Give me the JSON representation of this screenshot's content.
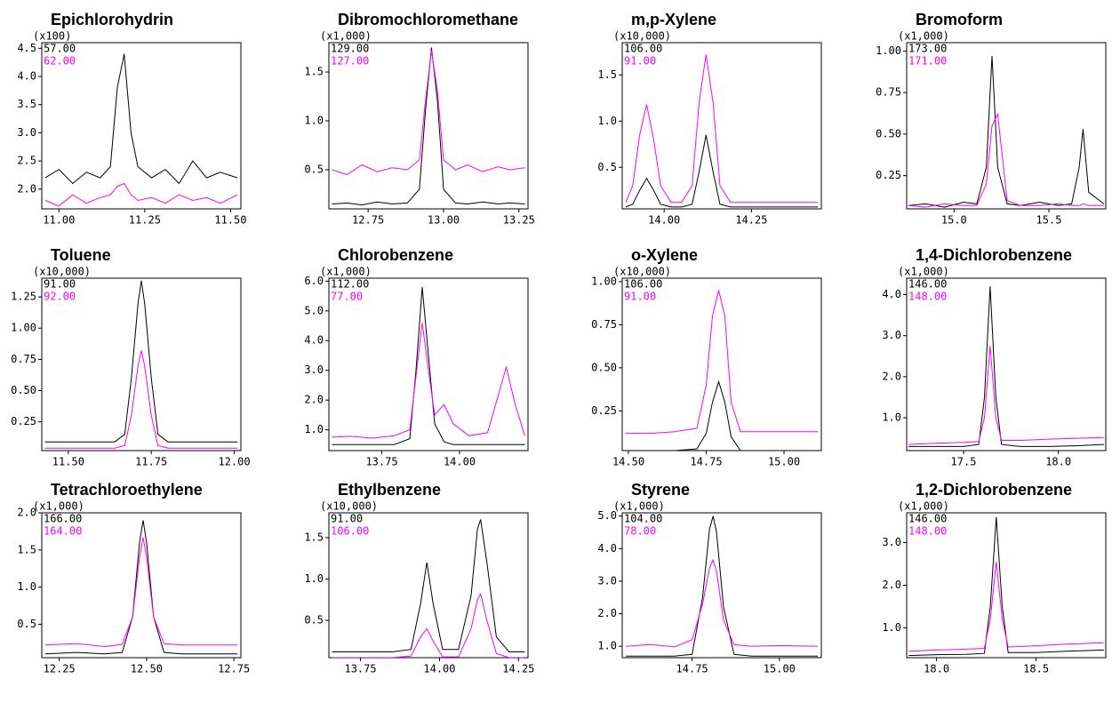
{
  "chart_data": [
    {
      "type": "line",
      "title": "Epichlorohydrin",
      "ylabel": "(x100)",
      "xlim": [
        10.95,
        11.53
      ],
      "ylim": [
        1.65,
        4.6
      ],
      "xticks": [
        {
          "value": 11.0,
          "label": "11.00"
        },
        11.25,
        {
          "value": 11.5,
          "label": "11.50"
        }
      ],
      "yticks": [
        {
          "value": 2.0,
          "label": "2.0"
        },
        2.5,
        {
          "value": 3.0,
          "label": "3.0"
        },
        3.5,
        {
          "value": 4.0,
          "label": "4.0"
        },
        4.5
      ],
      "x": [
        10.96,
        11.0,
        11.04,
        11.08,
        11.12,
        11.15,
        11.17,
        11.19,
        11.21,
        11.23,
        11.27,
        11.31,
        11.35,
        11.39,
        11.43,
        11.47,
        11.52
      ],
      "series": [
        {
          "name": "57.00",
          "color": "#000000",
          "values": [
            2.2,
            2.35,
            2.1,
            2.3,
            2.2,
            2.4,
            3.8,
            4.4,
            3.0,
            2.4,
            2.2,
            2.35,
            2.1,
            2.5,
            2.2,
            2.3,
            2.2
          ]
        },
        {
          "name": "62.00",
          "color": "#ff00ff",
          "values": [
            1.8,
            1.7,
            1.9,
            1.75,
            1.85,
            1.9,
            2.05,
            2.1,
            1.9,
            1.8,
            1.85,
            1.75,
            1.9,
            1.8,
            1.85,
            1.75,
            1.9
          ]
        }
      ]
    },
    {
      "type": "line",
      "title": "Dibromochloromethane",
      "ylabel": "(x1,000)",
      "xlim": [
        12.62,
        13.28
      ],
      "ylim": [
        0.1,
        1.8
      ],
      "xticks": [
        12.75,
        {
          "value": 13.0,
          "label": "13.00"
        },
        13.25
      ],
      "yticks": [
        0.5,
        {
          "value": 1.0,
          "label": "1.0"
        },
        1.5
      ],
      "x": [
        12.63,
        12.68,
        12.73,
        12.78,
        12.83,
        12.88,
        12.92,
        12.94,
        12.96,
        12.98,
        13.0,
        13.04,
        13.08,
        13.13,
        13.18,
        13.22,
        13.27
      ],
      "series": [
        {
          "name": "129.00",
          "color": "#000000",
          "values": [
            0.15,
            0.16,
            0.14,
            0.17,
            0.15,
            0.16,
            0.3,
            1.1,
            1.75,
            1.2,
            0.3,
            0.16,
            0.15,
            0.17,
            0.15,
            0.16,
            0.15
          ]
        },
        {
          "name": "127.00",
          "color": "#ff00ff",
          "values": [
            0.5,
            0.45,
            0.55,
            0.48,
            0.52,
            0.5,
            0.6,
            1.2,
            1.72,
            1.3,
            0.6,
            0.5,
            0.55,
            0.48,
            0.53,
            0.5,
            0.52
          ]
        }
      ]
    },
    {
      "type": "line",
      "title": "m,p-Xylene",
      "ylabel": "(x10,000)",
      "xlim": [
        13.88,
        14.45
      ],
      "ylim": [
        0.05,
        1.85
      ],
      "xticks": [
        {
          "value": 14.0,
          "label": "14.00"
        },
        14.25
      ],
      "yticks": [
        0.5,
        {
          "value": 1.0,
          "label": "1.0"
        },
        1.5
      ],
      "x": [
        13.89,
        13.91,
        13.93,
        13.95,
        13.97,
        13.99,
        14.02,
        14.05,
        14.08,
        14.1,
        14.12,
        14.14,
        14.16,
        14.19,
        14.23,
        14.3,
        14.37,
        14.44
      ],
      "series": [
        {
          "name": "106.00",
          "color": "#000000",
          "values": [
            0.07,
            0.1,
            0.25,
            0.38,
            0.25,
            0.1,
            0.07,
            0.07,
            0.1,
            0.45,
            0.85,
            0.45,
            0.1,
            0.07,
            0.07,
            0.07,
            0.07,
            0.07
          ]
        },
        {
          "name": "91.00",
          "color": "#ff00ff",
          "values": [
            0.12,
            0.3,
            0.85,
            1.18,
            0.8,
            0.3,
            0.12,
            0.12,
            0.3,
            1.2,
            1.72,
            1.2,
            0.3,
            0.12,
            0.12,
            0.12,
            0.12,
            0.12
          ]
        }
      ]
    },
    {
      "type": "line",
      "title": "Bromoform",
      "ylabel": "(x1,000)",
      "xlim": [
        14.75,
        15.8
      ],
      "ylim": [
        0.05,
        1.05
      ],
      "xticks": [
        {
          "value": 15.0,
          "label": "15.0"
        },
        15.5
      ],
      "yticks": [
        0.25,
        {
          "value": 0.5,
          "label": "0.50"
        },
        0.75,
        {
          "value": 1.0,
          "label": "1.00"
        }
      ],
      "x": [
        14.76,
        14.85,
        14.95,
        15.05,
        15.12,
        15.17,
        15.2,
        15.23,
        15.28,
        15.35,
        15.45,
        15.55,
        15.62,
        15.66,
        15.68,
        15.71,
        15.79
      ],
      "series": [
        {
          "name": "173.00",
          "color": "#000000",
          "values": [
            0.07,
            0.08,
            0.06,
            0.09,
            0.08,
            0.3,
            0.97,
            0.3,
            0.08,
            0.07,
            0.09,
            0.07,
            0.08,
            0.3,
            0.53,
            0.15,
            0.08
          ]
        },
        {
          "name": "171.00",
          "color": "#ff00ff",
          "values": [
            0.07,
            0.06,
            0.08,
            0.07,
            0.07,
            0.2,
            0.55,
            0.62,
            0.1,
            0.07,
            0.07,
            0.08,
            0.07,
            0.07,
            0.08,
            0.07,
            0.07
          ]
        }
      ]
    },
    {
      "type": "line",
      "title": "Toluene",
      "ylabel": "(x10,000)",
      "xlim": [
        11.42,
        12.02
      ],
      "ylim": [
        0.02,
        1.4
      ],
      "xticks": [
        {
          "value": 11.5,
          "label": "11.50"
        },
        11.75,
        {
          "value": 12.0,
          "label": "12.00"
        }
      ],
      "yticks": [
        0.25,
        {
          "value": 0.5,
          "label": "0.50"
        },
        0.75,
        {
          "value": 1.0,
          "label": "1.00"
        },
        1.25
      ],
      "x": [
        11.43,
        11.5,
        11.58,
        11.64,
        11.67,
        11.69,
        11.71,
        11.72,
        11.73,
        11.75,
        11.77,
        11.8,
        11.86,
        11.93,
        12.01
      ],
      "series": [
        {
          "name": "91.00",
          "color": "#000000",
          "values": [
            0.09,
            0.09,
            0.09,
            0.09,
            0.15,
            0.6,
            1.2,
            1.38,
            1.2,
            0.6,
            0.15,
            0.09,
            0.09,
            0.09,
            0.09
          ]
        },
        {
          "name": "92.00",
          "color": "#ff00ff",
          "values": [
            0.04,
            0.04,
            0.04,
            0.04,
            0.06,
            0.3,
            0.7,
            0.82,
            0.7,
            0.3,
            0.06,
            0.04,
            0.04,
            0.04,
            0.04
          ]
        }
      ]
    },
    {
      "type": "line",
      "title": "Chlorobenzene",
      "ylabel": "(x1,000)",
      "xlim": [
        13.58,
        14.22
      ],
      "ylim": [
        0.3,
        6.1
      ],
      "xticks": [
        13.75,
        {
          "value": 14.0,
          "label": "14.00"
        }
      ],
      "yticks": [
        {
          "value": 1.0,
          "label": "1.0"
        },
        {
          "value": 2.0,
          "label": "2.0"
        },
        {
          "value": 3.0,
          "label": "3.0"
        },
        {
          "value": 4.0,
          "label": "4.0"
        },
        {
          "value": 5.0,
          "label": "5.0"
        },
        {
          "value": 6.0,
          "label": "6.0"
        }
      ],
      "x": [
        13.59,
        13.65,
        13.72,
        13.79,
        13.84,
        13.86,
        13.88,
        13.9,
        13.92,
        13.95,
        13.98,
        14.03,
        14.09,
        14.12,
        14.15,
        14.18,
        14.21
      ],
      "series": [
        {
          "name": "112.00",
          "color": "#000000",
          "values": [
            0.5,
            0.5,
            0.5,
            0.5,
            0.7,
            3.0,
            5.8,
            3.5,
            1.2,
            0.6,
            0.5,
            0.5,
            0.5,
            0.5,
            0.5,
            0.5,
            0.5
          ]
        },
        {
          "name": "77.00",
          "color": "#ff00ff",
          "values": [
            0.75,
            0.78,
            0.72,
            0.8,
            1.0,
            2.8,
            4.6,
            3.0,
            1.5,
            1.85,
            1.2,
            0.8,
            0.9,
            2.0,
            3.1,
            1.8,
            0.8
          ]
        }
      ]
    },
    {
      "type": "line",
      "title": "o-Xylene",
      "ylabel": "(x10,000)",
      "xlim": [
        14.48,
        15.12
      ],
      "ylim": [
        0.02,
        1.02
      ],
      "xticks": [
        {
          "value": 14.5,
          "label": "14.50"
        },
        14.75,
        {
          "value": 15.0,
          "label": "15.00"
        }
      ],
      "yticks": [
        0.25,
        {
          "value": 0.5,
          "label": "0.50"
        },
        0.75,
        {
          "value": 1.0,
          "label": "1.00"
        }
      ],
      "x": [
        14.49,
        14.57,
        14.65,
        14.72,
        14.75,
        14.77,
        14.79,
        14.81,
        14.83,
        14.86,
        14.93,
        15.01,
        15.11
      ],
      "series": [
        {
          "name": "106.00",
          "color": "#000000",
          "values": [
            0.02,
            0.02,
            0.02,
            0.03,
            0.12,
            0.3,
            0.42,
            0.3,
            0.1,
            0.02,
            0.02,
            0.02,
            0.02
          ]
        },
        {
          "name": "91.00",
          "color": "#ff00ff",
          "values": [
            0.12,
            0.12,
            0.13,
            0.15,
            0.4,
            0.8,
            0.95,
            0.8,
            0.3,
            0.13,
            0.13,
            0.13,
            0.13
          ]
        }
      ]
    },
    {
      "type": "line",
      "title": "1,4-Dichlorobenzene",
      "ylabel": "(x1,000)",
      "xlim": [
        17.2,
        18.25
      ],
      "ylim": [
        0.2,
        4.4
      ],
      "xticks": [
        17.5,
        {
          "value": 18.0,
          "label": "18.0"
        }
      ],
      "yticks": [
        {
          "value": 1.0,
          "label": "1.0"
        },
        {
          "value": 2.0,
          "label": "2.0"
        },
        {
          "value": 3.0,
          "label": "3.0"
        },
        {
          "value": 4.0,
          "label": "4.0"
        }
      ],
      "x": [
        17.21,
        17.35,
        17.5,
        17.58,
        17.61,
        17.64,
        17.67,
        17.7,
        17.8,
        17.95,
        18.1,
        18.24
      ],
      "series": [
        {
          "name": "146.00",
          "color": "#000000",
          "values": [
            0.3,
            0.3,
            0.3,
            0.35,
            1.5,
            4.2,
            1.5,
            0.35,
            0.3,
            0.3,
            0.32,
            0.35
          ]
        },
        {
          "name": "148.00",
          "color": "#ff00ff",
          "values": [
            0.35,
            0.38,
            0.4,
            0.42,
            1.0,
            2.75,
            1.0,
            0.45,
            0.45,
            0.48,
            0.5,
            0.52
          ]
        }
      ]
    },
    {
      "type": "line",
      "title": "Tetrachloroethylene",
      "ylabel": "(x1,000)",
      "xlim": [
        12.2,
        12.77
      ],
      "ylim": [
        0.05,
        2.0
      ],
      "xticks": [
        12.25,
        {
          "value": 12.5,
          "label": "12.50"
        },
        12.75
      ],
      "yticks": [
        0.5,
        {
          "value": 1.0,
          "label": "1.0"
        },
        1.5,
        {
          "value": 2.0,
          "label": "2.0"
        }
      ],
      "x": [
        12.21,
        12.3,
        12.38,
        12.43,
        12.46,
        12.48,
        12.49,
        12.5,
        12.52,
        12.55,
        12.6,
        12.68,
        12.76
      ],
      "series": [
        {
          "name": "166.00",
          "color": "#000000",
          "values": [
            0.1,
            0.12,
            0.1,
            0.12,
            0.6,
            1.6,
            1.9,
            1.6,
            0.6,
            0.12,
            0.1,
            0.1,
            0.1
          ]
        },
        {
          "name": "164.00",
          "color": "#ff00ff",
          "values": [
            0.22,
            0.24,
            0.2,
            0.23,
            0.6,
            1.4,
            1.67,
            1.4,
            0.6,
            0.24,
            0.22,
            0.22,
            0.22
          ]
        }
      ]
    },
    {
      "type": "line",
      "title": "Ethylbenzene",
      "ylabel": "(x10,000)",
      "xlim": [
        13.65,
        14.28
      ],
      "ylim": [
        0.05,
        1.8
      ],
      "xticks": [
        13.75,
        {
          "value": 14.0,
          "label": "14.00"
        },
        14.25
      ],
      "yticks": [
        0.5,
        {
          "value": 1.0,
          "label": "1.0"
        },
        1.5
      ],
      "x": [
        13.66,
        13.75,
        13.85,
        13.91,
        13.94,
        13.96,
        13.98,
        14.01,
        14.06,
        14.1,
        14.12,
        14.13,
        14.15,
        14.18,
        14.22,
        14.27
      ],
      "series": [
        {
          "name": "91.00",
          "color": "#000000",
          "values": [
            0.12,
            0.12,
            0.12,
            0.15,
            0.7,
            1.2,
            0.7,
            0.15,
            0.15,
            0.8,
            1.6,
            1.72,
            1.2,
            0.3,
            0.12,
            0.12
          ]
        },
        {
          "name": "106.00",
          "color": "#ff00ff",
          "values": [
            0.05,
            0.05,
            0.05,
            0.07,
            0.3,
            0.4,
            0.25,
            0.06,
            0.06,
            0.4,
            0.75,
            0.82,
            0.5,
            0.1,
            0.05,
            0.05
          ]
        }
      ]
    },
    {
      "type": "line",
      "title": "Styrene",
      "ylabel": "(x1,000)",
      "xlim": [
        14.55,
        15.12
      ],
      "ylim": [
        0.65,
        5.1
      ],
      "xticks": [
        14.75,
        {
          "value": 15.0,
          "label": "15.00"
        }
      ],
      "yticks": [
        {
          "value": 1.0,
          "label": "1.0"
        },
        {
          "value": 2.0,
          "label": "2.0"
        },
        {
          "value": 3.0,
          "label": "3.0"
        },
        {
          "value": 4.0,
          "label": "4.0"
        },
        {
          "value": 5.0,
          "label": "5.0"
        }
      ],
      "x": [
        14.56,
        14.63,
        14.7,
        14.75,
        14.78,
        14.8,
        14.81,
        14.82,
        14.84,
        14.87,
        14.92,
        15.0,
        15.11
      ],
      "series": [
        {
          "name": "104.00",
          "color": "#000000",
          "values": [
            0.7,
            0.7,
            0.7,
            0.75,
            2.5,
            4.6,
            5.0,
            4.5,
            2.2,
            0.75,
            0.7,
            0.7,
            0.7
          ]
        },
        {
          "name": "78.00",
          "color": "#ff00ff",
          "values": [
            1.0,
            1.05,
            0.98,
            1.2,
            2.3,
            3.4,
            3.65,
            3.3,
            1.8,
            1.05,
            1.0,
            1.02,
            1.0
          ]
        }
      ]
    },
    {
      "type": "line",
      "title": "1,2-Dichlorobenzene",
      "ylabel": "(x1,000)",
      "xlim": [
        17.85,
        18.85
      ],
      "ylim": [
        0.3,
        3.7
      ],
      "xticks": [
        {
          "value": 18.0,
          "label": "18.0"
        },
        18.5
      ],
      "yticks": [
        {
          "value": 1.0,
          "label": "1.0"
        },
        {
          "value": 2.0,
          "label": "2.0"
        },
        {
          "value": 3.0,
          "label": "3.0"
        }
      ],
      "x": [
        17.86,
        18.0,
        18.15,
        18.24,
        18.27,
        18.3,
        18.33,
        18.36,
        18.5,
        18.65,
        18.84
      ],
      "series": [
        {
          "name": "146.00",
          "color": "#000000",
          "values": [
            0.35,
            0.37,
            0.38,
            0.4,
            1.5,
            3.6,
            1.5,
            0.42,
            0.42,
            0.45,
            0.48
          ]
        },
        {
          "name": "148.00",
          "color": "#ff00ff",
          "values": [
            0.45,
            0.48,
            0.5,
            0.52,
            1.2,
            2.55,
            1.2,
            0.55,
            0.58,
            0.62,
            0.65
          ]
        }
      ]
    }
  ]
}
